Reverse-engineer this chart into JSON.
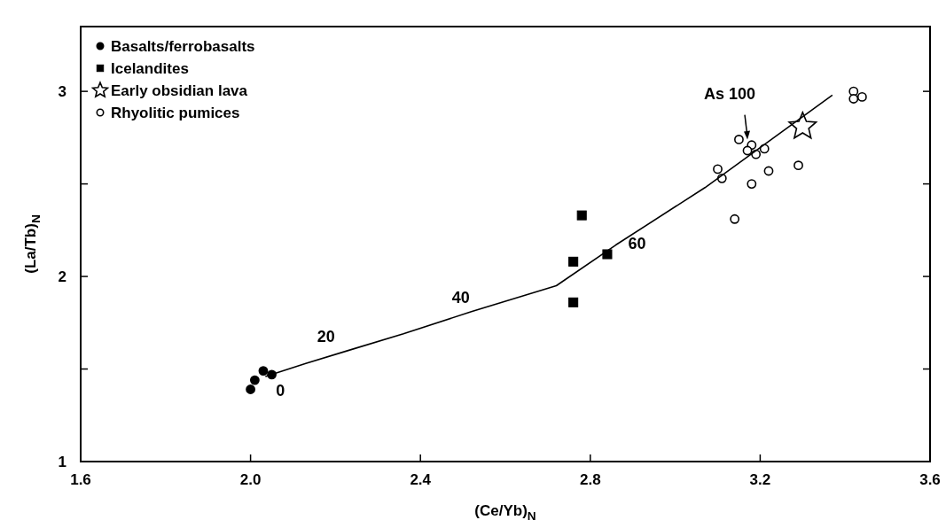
{
  "chart_data": {
    "type": "scatter",
    "xlabel": "(Ce/Yb)$_{N}$",
    "ylabel": "(La/Tb)$_{N}$",
    "xlim": [
      1.6,
      3.6
    ],
    "xticks": [
      {
        "value": 1.6,
        "label": "1.6"
      },
      {
        "value": 2.0,
        "label": "2.0"
      },
      {
        "value": 2.4,
        "label": "2.4"
      },
      {
        "value": 2.8,
        "label": "2.8"
      },
      {
        "value": 3.2,
        "label": "3.2"
      },
      {
        "value": 3.6,
        "label": "3.6"
      }
    ],
    "ylim": [
      1,
      3.35
    ],
    "yticks": [
      1,
      {
        "value": 1.5,
        "label": null
      },
      2,
      {
        "value": 2.5,
        "label": null
      },
      3
    ],
    "grid": false,
    "legend": "top left",
    "series": [
      {
        "name": "Basalts/ferrobasalts",
        "marker": "circle",
        "color": "#000000",
        "x": [
          2.0,
          2.01,
          2.03,
          2.05
        ],
        "values": [
          1.39,
          1.44,
          1.49,
          1.47
        ]
      },
      {
        "name": "Icelandites",
        "marker": "square",
        "color": "#000000",
        "x": [
          2.78,
          2.76,
          2.84,
          2.76
        ],
        "values": [
          2.33,
          2.08,
          2.12,
          1.86
        ]
      },
      {
        "name": "Early obsidian lava",
        "marker": "star",
        "color": "#ffffff",
        "x": [
          3.3
        ],
        "values": [
          2.81
        ]
      },
      {
        "name": "Rhyolitic pumices",
        "marker": "circle",
        "color": "#ffffff",
        "x": [
          3.42,
          3.42,
          3.44,
          3.15,
          3.18,
          3.17,
          3.19,
          3.21,
          3.1,
          3.11,
          3.22,
          3.29,
          3.18,
          3.14
        ],
        "values": [
          3.0,
          2.96,
          2.97,
          2.74,
          2.71,
          2.68,
          2.66,
          2.69,
          2.58,
          2.53,
          2.57,
          2.6,
          2.5,
          2.31
        ]
      },
      {
        "type": "line",
        "marker": "none",
        "color": "#000000",
        "x": [
          2.035,
          2.13,
          2.23,
          2.36,
          2.52,
          2.72,
          2.86,
          3.07,
          3.37
        ],
        "values": [
          1.46,
          1.53,
          1.6,
          1.69,
          1.81,
          1.95,
          2.17,
          2.48,
          2.98
        ]
      }
    ],
    "annotations": [
      {
        "text": "0",
        "x": 2.035,
        "y": 1.46
      },
      {
        "text": "20",
        "x": 2.23,
        "y": 1.6
      },
      {
        "text": "40",
        "x": 2.52,
        "y": 1.81
      },
      {
        "text": "60",
        "x": 2.86,
        "y": 2.17
      },
      {
        "text": "As 100",
        "x": 3.17,
        "y": 2.73
      }
    ]
  }
}
